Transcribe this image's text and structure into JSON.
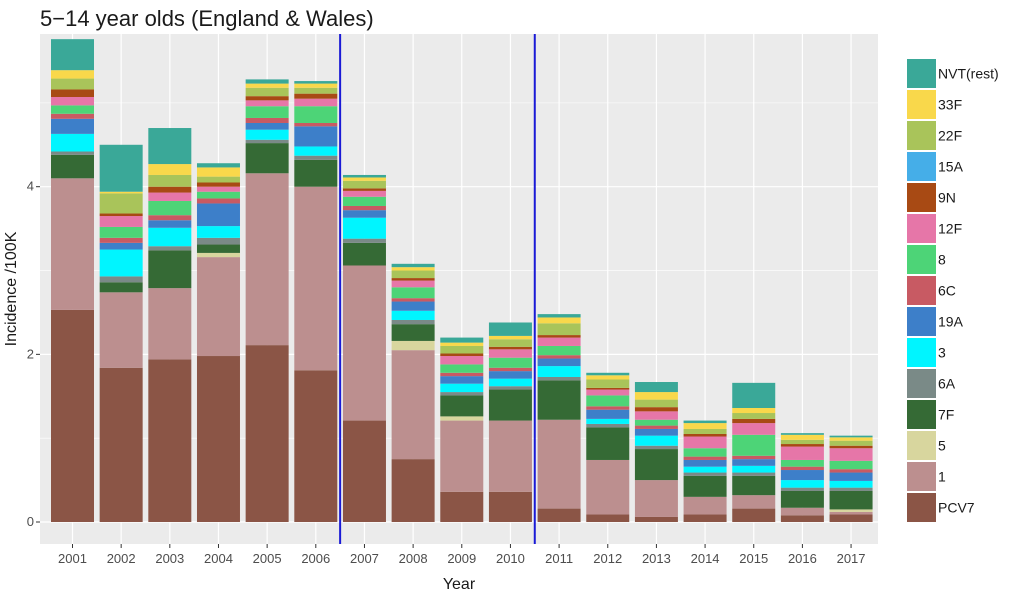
{
  "chart_data": {
    "type": "bar",
    "stacked": true,
    "title": "5−14 year olds (England & Wales)",
    "xlabel": "Year",
    "ylabel": "Incidence /100K",
    "ylim": [
      0,
      5.75
    ],
    "yticks": [
      0,
      2,
      4
    ],
    "grid": true,
    "legend_position": "right",
    "reference_lines_x": [
      2006.5,
      2010.5
    ],
    "reference_line_color": "#1a1ad6",
    "categories": [
      "2001",
      "2002",
      "2003",
      "2004",
      "2005",
      "2006",
      "2007",
      "2008",
      "2009",
      "2010",
      "2011",
      "2012",
      "2013",
      "2014",
      "2015",
      "2016",
      "2017"
    ],
    "series": [
      {
        "name": "PCV7",
        "color": "#8b5546",
        "values": [
          2.53,
          1.84,
          1.94,
          1.98,
          2.11,
          1.81,
          1.21,
          0.75,
          0.36,
          0.36,
          0.16,
          0.09,
          0.06,
          0.09,
          0.16,
          0.08,
          0.09
        ]
      },
      {
        "name": "1",
        "color": "#bc8f8f",
        "values": [
          1.57,
          0.9,
          0.85,
          1.18,
          2.05,
          2.19,
          1.85,
          1.3,
          0.85,
          0.85,
          1.06,
          0.65,
          0.44,
          0.21,
          0.16,
          0.09,
          0.03
        ]
      },
      {
        "name": "5",
        "color": "#d8d69e",
        "values": [
          0.0,
          0.0,
          0.0,
          0.05,
          0.0,
          0.0,
          0.0,
          0.11,
          0.05,
          0.0,
          0.0,
          0.0,
          0.0,
          0.0,
          0.0,
          0.0,
          0.03
        ]
      },
      {
        "name": "7F",
        "color": "#356a35",
        "values": [
          0.28,
          0.12,
          0.45,
          0.1,
          0.36,
          0.32,
          0.27,
          0.2,
          0.25,
          0.37,
          0.47,
          0.39,
          0.37,
          0.25,
          0.23,
          0.2,
          0.22
        ]
      },
      {
        "name": "6A",
        "color": "#7a8a87",
        "values": [
          0.04,
          0.07,
          0.05,
          0.08,
          0.04,
          0.05,
          0.05,
          0.05,
          0.04,
          0.04,
          0.04,
          0.04,
          0.04,
          0.04,
          0.04,
          0.04,
          0.04
        ]
      },
      {
        "name": "3",
        "color": "#00f5ff",
        "values": [
          0.21,
          0.32,
          0.22,
          0.14,
          0.12,
          0.11,
          0.25,
          0.11,
          0.1,
          0.09,
          0.13,
          0.06,
          0.12,
          0.07,
          0.08,
          0.09,
          0.08
        ]
      },
      {
        "name": "19A",
        "color": "#3d7fc9",
        "values": [
          0.18,
          0.08,
          0.09,
          0.27,
          0.08,
          0.24,
          0.09,
          0.11,
          0.09,
          0.09,
          0.09,
          0.11,
          0.08,
          0.08,
          0.08,
          0.12,
          0.1
        ]
      },
      {
        "name": "6C",
        "color": "#c85a63",
        "values": [
          0.06,
          0.06,
          0.06,
          0.06,
          0.06,
          0.04,
          0.05,
          0.04,
          0.04,
          0.04,
          0.04,
          0.04,
          0.04,
          0.04,
          0.04,
          0.04,
          0.04
        ]
      },
      {
        "name": "8",
        "color": "#4dd477",
        "values": [
          0.1,
          0.13,
          0.17,
          0.08,
          0.14,
          0.2,
          0.11,
          0.13,
          0.1,
          0.12,
          0.11,
          0.13,
          0.07,
          0.1,
          0.25,
          0.08,
          0.1
        ]
      },
      {
        "name": "12F",
        "color": "#e676a8",
        "values": [
          0.1,
          0.13,
          0.1,
          0.06,
          0.07,
          0.09,
          0.07,
          0.08,
          0.1,
          0.1,
          0.1,
          0.07,
          0.1,
          0.14,
          0.14,
          0.16,
          0.15
        ]
      },
      {
        "name": "9N",
        "color": "#a84a14",
        "values": [
          0.09,
          0.03,
          0.07,
          0.05,
          0.05,
          0.06,
          0.03,
          0.03,
          0.03,
          0.03,
          0.03,
          0.02,
          0.05,
          0.03,
          0.05,
          0.03,
          0.03
        ]
      },
      {
        "name": "15A",
        "color": "#45aee8",
        "values": [
          0.0,
          0.0,
          0.0,
          0.0,
          0.0,
          0.0,
          0.0,
          0.0,
          0.0,
          0.0,
          0.0,
          0.0,
          0.0,
          0.0,
          0.0,
          0.0,
          0.0
        ]
      },
      {
        "name": "22F",
        "color": "#a9c45a",
        "values": [
          0.13,
          0.24,
          0.14,
          0.07,
          0.1,
          0.07,
          0.09,
          0.09,
          0.09,
          0.09,
          0.14,
          0.1,
          0.09,
          0.06,
          0.07,
          0.05,
          0.06
        ]
      },
      {
        "name": "33F",
        "color": "#f9d84b",
        "values": [
          0.1,
          0.02,
          0.13,
          0.11,
          0.05,
          0.05,
          0.04,
          0.04,
          0.04,
          0.04,
          0.07,
          0.05,
          0.09,
          0.07,
          0.06,
          0.06,
          0.04
        ]
      },
      {
        "name": "NVT(rest)",
        "color": "#3aa898",
        "values": [
          0.37,
          0.56,
          0.43,
          0.05,
          0.05,
          0.03,
          0.03,
          0.04,
          0.06,
          0.16,
          0.04,
          0.03,
          0.12,
          0.03,
          0.3,
          0.02,
          0.02
        ]
      }
    ]
  }
}
